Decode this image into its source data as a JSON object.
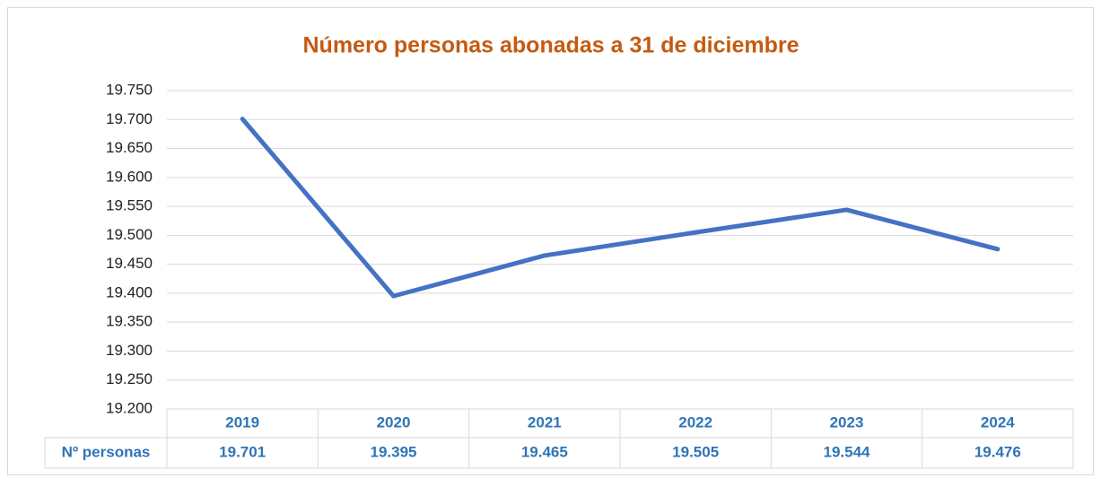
{
  "chart_data": {
    "type": "line",
    "title": "Número personas abonadas a 31 de diciembre",
    "categories": [
      "2019",
      "2020",
      "2021",
      "2022",
      "2023",
      "2024"
    ],
    "series": [
      {
        "name": "Nº personas",
        "color": "#4472c4",
        "values": [
          19701,
          19395,
          19465,
          19505,
          19544,
          19476
        ],
        "value_labels": [
          "19.701",
          "19.395",
          "19.465",
          "19.505",
          "19.544",
          "19.476"
        ]
      }
    ],
    "ylim": [
      19200,
      19750
    ],
    "yticks": [
      {
        "value": 19200,
        "label": "19.200"
      },
      {
        "value": 19250,
        "label": "19.250"
      },
      {
        "value": 19300,
        "label": "19.300"
      },
      {
        "value": 19350,
        "label": "19.350"
      },
      {
        "value": 19400,
        "label": "19.400"
      },
      {
        "value": 19450,
        "label": "19.450"
      },
      {
        "value": 19500,
        "label": "19.500"
      },
      {
        "value": 19550,
        "label": "19.550"
      },
      {
        "value": 19600,
        "label": "19.600"
      },
      {
        "value": 19650,
        "label": "19.650"
      },
      {
        "value": 19700,
        "label": "19.700"
      },
      {
        "value": 19750,
        "label": "19.750"
      }
    ],
    "grid": true,
    "legend": "table"
  }
}
